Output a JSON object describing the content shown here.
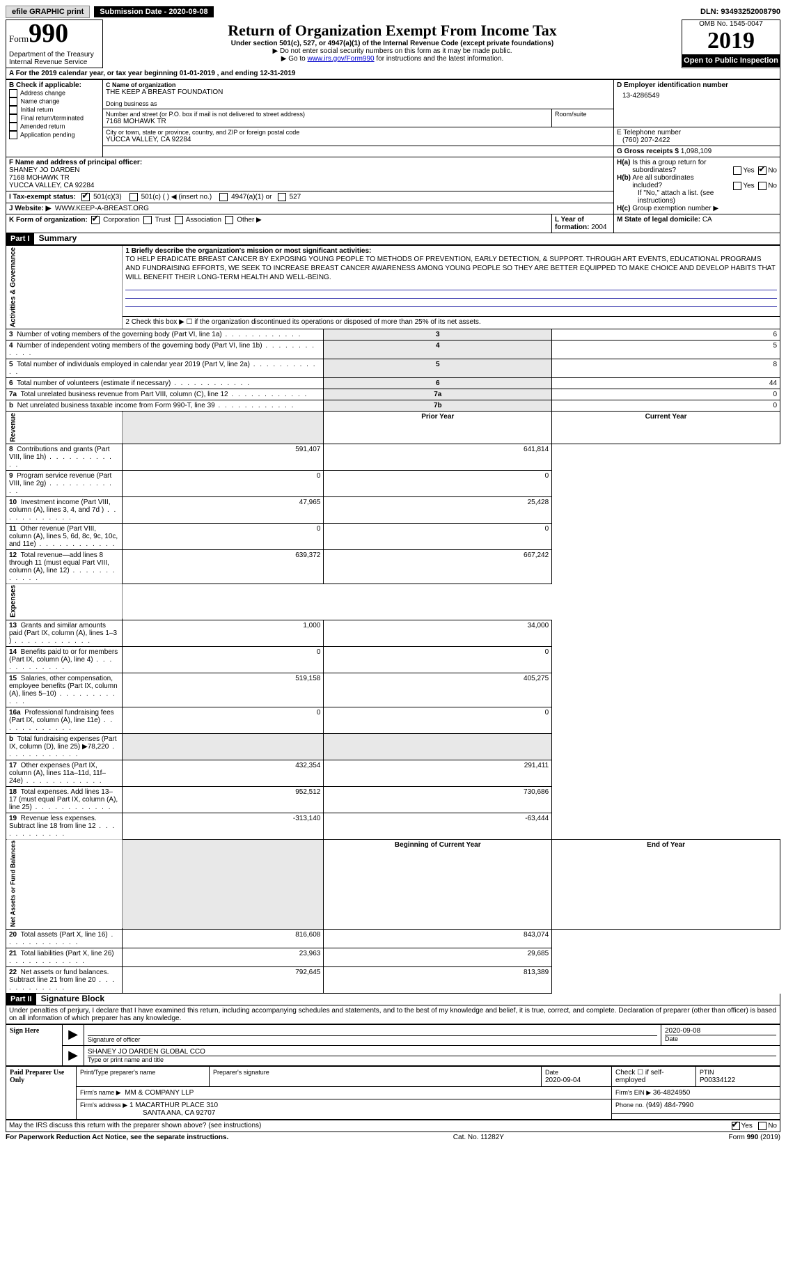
{
  "topbar": {
    "efile": "efile GRAPHIC print",
    "submission": "Submission Date - 2020-09-08",
    "dln": "DLN: 93493252008790"
  },
  "header": {
    "form_word": "Form",
    "form_num": "990",
    "dept1": "Department of the Treasury",
    "dept2": "Internal Revenue Service",
    "title": "Return of Organization Exempt From Income Tax",
    "subtitle": "Under section 501(c), 527, or 4947(a)(1) of the Internal Revenue Code (except private foundations)",
    "note1": "▶ Do not enter social security numbers on this form as it may be made public.",
    "note2_pre": "▶ Go to ",
    "note2_link": "www.irs.gov/Form990",
    "note2_post": " for instructions and the latest information.",
    "omb": "OMB No. 1545-0047",
    "year": "2019",
    "open": "Open to Public Inspection"
  },
  "a": {
    "line": "A For the 2019 calendar year, or tax year beginning 01-01-2019     , and ending 12-31-2019"
  },
  "b": {
    "label": "B Check if applicable:",
    "opts": [
      "Address change",
      "Name change",
      "Initial return",
      "Final return/terminated",
      "Amended return",
      "Application pending"
    ]
  },
  "c": {
    "label": "C Name of organization",
    "name": "THE KEEP A BREAST FOUNDATION",
    "dba_label": "Doing business as",
    "street_label": "Number and street (or P.O. box if mail is not delivered to street address)",
    "street": "7168 MOHAWK TR",
    "room_label": "Room/suite",
    "city_label": "City or town, state or province, country, and ZIP or foreign postal code",
    "city": "YUCCA VALLEY, CA  92284"
  },
  "d": {
    "label": "D Employer identification number",
    "val": "13-4286549"
  },
  "e": {
    "label": "E Telephone number",
    "val": "(760) 207-2422"
  },
  "g": {
    "label": "G Gross receipts $",
    "val": "1,098,109"
  },
  "f": {
    "label": "F Name and address of principal officer:",
    "name": "SHANEY JO DARDEN",
    "addr1": "7168 MOHAWK TR",
    "addr2": "YUCCA VALLEY, CA  92284"
  },
  "h": {
    "a_label": "H(a)  Is this a group return for subordinates?",
    "b_label": "H(b)  Are all subordinates included?",
    "b_note": "If \"No,\" attach a list. (see instructions)",
    "c_label": "H(c)  Group exemption number ▶",
    "yes": "Yes",
    "no": "No"
  },
  "i": {
    "label": "I    Tax-exempt status:",
    "o1": "501(c)(3)",
    "o2": "501(c) (   ) ◀ (insert no.)",
    "o3": "4947(a)(1) or",
    "o4": "527"
  },
  "j": {
    "label": "J    Website: ▶",
    "val": "WWW.KEEP-A-BREAST.ORG"
  },
  "k": {
    "label": "K Form of organization:",
    "o1": "Corporation",
    "o2": "Trust",
    "o3": "Association",
    "o4": "Other ▶"
  },
  "l": {
    "label": "L Year of formation:",
    "val": "2004"
  },
  "m": {
    "label": "M State of legal domicile:",
    "val": "CA"
  },
  "part1": {
    "tag": "Part I",
    "title": "Summary",
    "vert_ag": "Activities & Governance",
    "vert_rev": "Revenue",
    "vert_exp": "Expenses",
    "vert_net": "Net Assets or Fund Balances",
    "l1_label": "1  Briefly describe the organization's mission or most significant activities:",
    "l1_text": "TO HELP ERADICATE BREAST CANCER BY EXPOSING YOUNG PEOPLE TO METHODS OF PREVENTION, EARLY DETECTION, & SUPPORT. THROUGH ART EVENTS, EDUCATIONAL PROGRAMS AND FUNDRAISING EFFORTS, WE SEEK TO INCREASE BREAST CANCER AWARENESS AMONG YOUNG PEOPLE SO THEY ARE BETTER EQUIPPED TO MAKE CHOICE AND DEVELOP HABITS THAT WILL BENEFIT THEIR LONG-TERM HEALTH AND WELL-BEING.",
    "l2": "2   Check this box ▶ ☐ if the organization discontinued its operations or disposed of more than 25% of its net assets.",
    "rows_ag": [
      {
        "n": "3",
        "label": "Number of voting members of the governing body (Part VI, line 1a)",
        "box": "3",
        "val": "6"
      },
      {
        "n": "4",
        "label": "Number of independent voting members of the governing body (Part VI, line 1b)",
        "box": "4",
        "val": "5"
      },
      {
        "n": "5",
        "label": "Total number of individuals employed in calendar year 2019 (Part V, line 2a)",
        "box": "5",
        "val": "8"
      },
      {
        "n": "6",
        "label": "Total number of volunteers (estimate if necessary)",
        "box": "6",
        "val": "44"
      },
      {
        "n": "7a",
        "label": "Total unrelated business revenue from Part VIII, column (C), line 12",
        "box": "7a",
        "val": "0"
      },
      {
        "n": "b",
        "label": "Net unrelated business taxable income from Form 990-T, line 39",
        "box": "7b",
        "val": "0"
      }
    ],
    "col_prior": "Prior Year",
    "col_current": "Current Year",
    "rows_rev": [
      {
        "n": "8",
        "label": "Contributions and grants (Part VIII, line 1h)",
        "p": "591,407",
        "c": "641,814"
      },
      {
        "n": "9",
        "label": "Program service revenue (Part VIII, line 2g)",
        "p": "0",
        "c": "0"
      },
      {
        "n": "10",
        "label": "Investment income (Part VIII, column (A), lines 3, 4, and 7d )",
        "p": "47,965",
        "c": "25,428"
      },
      {
        "n": "11",
        "label": "Other revenue (Part VIII, column (A), lines 5, 6d, 8c, 9c, 10c, and 11e)",
        "p": "0",
        "c": "0"
      },
      {
        "n": "12",
        "label": "Total revenue—add lines 8 through 11 (must equal Part VIII, column (A), line 12)",
        "p": "639,372",
        "c": "667,242"
      }
    ],
    "rows_exp": [
      {
        "n": "13",
        "label": "Grants and similar amounts paid (Part IX, column (A), lines 1–3 )",
        "p": "1,000",
        "c": "34,000"
      },
      {
        "n": "14",
        "label": "Benefits paid to or for members (Part IX, column (A), line 4)",
        "p": "0",
        "c": "0"
      },
      {
        "n": "15",
        "label": "Salaries, other compensation, employee benefits (Part IX, column (A), lines 5–10)",
        "p": "519,158",
        "c": "405,275"
      },
      {
        "n": "16a",
        "label": "Professional fundraising fees (Part IX, column (A), line 11e)",
        "p": "0",
        "c": "0"
      },
      {
        "n": "b",
        "label": "Total fundraising expenses (Part IX, column (D), line 25) ▶78,220",
        "p": "",
        "c": "",
        "gray": true
      },
      {
        "n": "17",
        "label": "Other expenses (Part IX, column (A), lines 11a–11d, 11f–24e)",
        "p": "432,354",
        "c": "291,411"
      },
      {
        "n": "18",
        "label": "Total expenses. Add lines 13–17 (must equal Part IX, column (A), line 25)",
        "p": "952,512",
        "c": "730,686"
      },
      {
        "n": "19",
        "label": "Revenue less expenses. Subtract line 18 from line 12",
        "p": "-313,140",
        "c": "-63,444"
      }
    ],
    "col_begin": "Beginning of Current Year",
    "col_end": "End of Year",
    "rows_net": [
      {
        "n": "20",
        "label": "Total assets (Part X, line 16)",
        "p": "816,608",
        "c": "843,074"
      },
      {
        "n": "21",
        "label": "Total liabilities (Part X, line 26)",
        "p": "23,963",
        "c": "29,685"
      },
      {
        "n": "22",
        "label": "Net assets or fund balances. Subtract line 21 from line 20",
        "p": "792,645",
        "c": "813,389"
      }
    ]
  },
  "part2": {
    "tag": "Part II",
    "title": "Signature Block",
    "decl": "Under penalties of perjury, I declare that I have examined this return, including accompanying schedules and statements, and to the best of my knowledge and belief, it is true, correct, and complete. Declaration of preparer (other than officer) is based on all information of which preparer has any knowledge.",
    "sign_here": "Sign Here",
    "sig_officer": "Signature of officer",
    "sig_date": "2020-09-08",
    "date_label": "Date",
    "officer_name": "SHANEY JO DARDEN  GLOBAL CCO",
    "type_name": "Type or print name and title",
    "paid": "Paid Preparer Use Only",
    "prep_name_label": "Print/Type preparer's name",
    "prep_sig_label": "Preparer's signature",
    "prep_date_label": "Date",
    "prep_date": "2020-09-04",
    "check_self": "Check ☐ if self-employed",
    "ptin_label": "PTIN",
    "ptin": "P00334122",
    "firm_name_label": "Firm's name     ▶",
    "firm_name": "MM & COMPANY LLP",
    "firm_ein_label": "Firm's EIN ▶",
    "firm_ein": "36-4824950",
    "firm_addr_label": "Firm's address ▶",
    "firm_addr1": "1 MACARTHUR PLACE 310",
    "firm_addr2": "SANTA ANA, CA  92707",
    "phone_label": "Phone no.",
    "phone": "(949) 484-7990",
    "discuss": "May the IRS discuss this return with the preparer shown above? (see instructions)",
    "yes": "Yes",
    "no": "No"
  },
  "footer": {
    "left": "For Paperwork Reduction Act Notice, see the separate instructions.",
    "mid": "Cat. No. 11282Y",
    "right_pre": "Form ",
    "right_num": "990",
    "right_post": " (2019)"
  }
}
